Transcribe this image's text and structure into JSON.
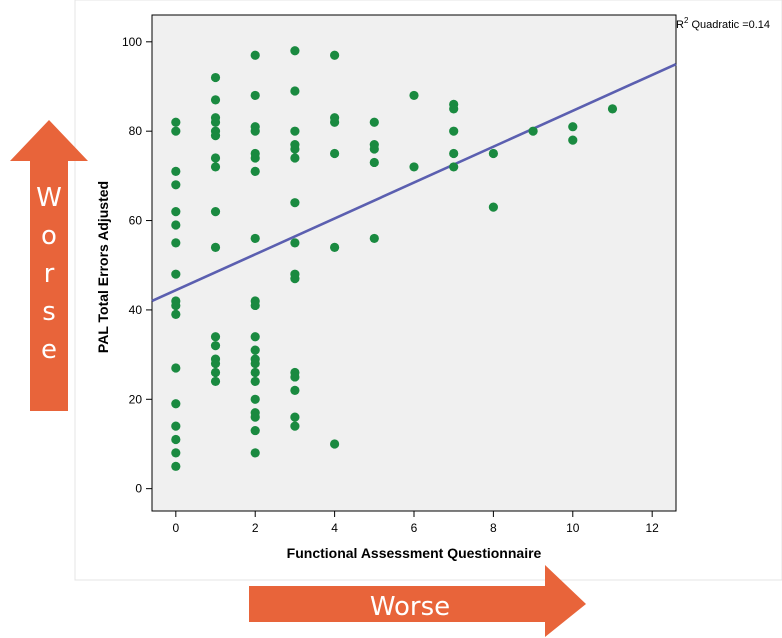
{
  "chart_data": {
    "type": "scatter",
    "xlabel": "Functional Assessment Questionnaire",
    "ylabel": "PAL Total Errors Adjusted",
    "xlim": [
      -0.6,
      12.6
    ],
    "ylim": [
      -5,
      106
    ],
    "x_ticks": [
      0,
      2,
      4,
      6,
      8,
      10,
      12
    ],
    "y_ticks": [
      0,
      20,
      40,
      60,
      80,
      100
    ],
    "grid": false,
    "fit_label": {
      "prefix": "R",
      "sup": "2",
      "suffix": " Quadratic =0.14"
    },
    "fit_line": {
      "x": [
        -0.6,
        12.6
      ],
      "y": [
        42,
        95
      ]
    },
    "points": [
      {
        "x": 0,
        "y": 82
      },
      {
        "x": 0,
        "y": 80
      },
      {
        "x": 0,
        "y": 71
      },
      {
        "x": 0,
        "y": 68
      },
      {
        "x": 0,
        "y": 62
      },
      {
        "x": 0,
        "y": 59
      },
      {
        "x": 0,
        "y": 55
      },
      {
        "x": 0,
        "y": 48
      },
      {
        "x": 0,
        "y": 42
      },
      {
        "x": 0,
        "y": 41
      },
      {
        "x": 0,
        "y": 39
      },
      {
        "x": 0,
        "y": 27
      },
      {
        "x": 0,
        "y": 19
      },
      {
        "x": 0,
        "y": 14
      },
      {
        "x": 0,
        "y": 11
      },
      {
        "x": 0,
        "y": 8
      },
      {
        "x": 0,
        "y": 5
      },
      {
        "x": 1,
        "y": 92
      },
      {
        "x": 1,
        "y": 87
      },
      {
        "x": 1,
        "y": 83
      },
      {
        "x": 1,
        "y": 82
      },
      {
        "x": 1,
        "y": 80
      },
      {
        "x": 1,
        "y": 79
      },
      {
        "x": 1,
        "y": 74
      },
      {
        "x": 1,
        "y": 72
      },
      {
        "x": 1,
        "y": 62
      },
      {
        "x": 1,
        "y": 54
      },
      {
        "x": 1,
        "y": 34
      },
      {
        "x": 1,
        "y": 32
      },
      {
        "x": 1,
        "y": 29
      },
      {
        "x": 1,
        "y": 28
      },
      {
        "x": 1,
        "y": 26
      },
      {
        "x": 1,
        "y": 24
      },
      {
        "x": 2,
        "y": 97
      },
      {
        "x": 2,
        "y": 88
      },
      {
        "x": 2,
        "y": 81
      },
      {
        "x": 2,
        "y": 80
      },
      {
        "x": 2,
        "y": 75
      },
      {
        "x": 2,
        "y": 74
      },
      {
        "x": 2,
        "y": 71
      },
      {
        "x": 2,
        "y": 56
      },
      {
        "x": 2,
        "y": 42
      },
      {
        "x": 2,
        "y": 41
      },
      {
        "x": 2,
        "y": 34
      },
      {
        "x": 2,
        "y": 31
      },
      {
        "x": 2,
        "y": 29
      },
      {
        "x": 2,
        "y": 28
      },
      {
        "x": 2,
        "y": 26
      },
      {
        "x": 2,
        "y": 24
      },
      {
        "x": 2,
        "y": 20
      },
      {
        "x": 2,
        "y": 17
      },
      {
        "x": 2,
        "y": 16
      },
      {
        "x": 2,
        "y": 13
      },
      {
        "x": 2,
        "y": 8
      },
      {
        "x": 3,
        "y": 98
      },
      {
        "x": 3,
        "y": 89
      },
      {
        "x": 3,
        "y": 80
      },
      {
        "x": 3,
        "y": 77
      },
      {
        "x": 3,
        "y": 76
      },
      {
        "x": 3,
        "y": 74
      },
      {
        "x": 3,
        "y": 64
      },
      {
        "x": 3,
        "y": 55
      },
      {
        "x": 3,
        "y": 48
      },
      {
        "x": 3,
        "y": 47
      },
      {
        "x": 3,
        "y": 26
      },
      {
        "x": 3,
        "y": 25
      },
      {
        "x": 3,
        "y": 22
      },
      {
        "x": 3,
        "y": 16
      },
      {
        "x": 3,
        "y": 14
      },
      {
        "x": 4,
        "y": 97
      },
      {
        "x": 4,
        "y": 83
      },
      {
        "x": 4,
        "y": 82
      },
      {
        "x": 4,
        "y": 75
      },
      {
        "x": 4,
        "y": 54
      },
      {
        "x": 4,
        "y": 10
      },
      {
        "x": 5,
        "y": 82
      },
      {
        "x": 5,
        "y": 77
      },
      {
        "x": 5,
        "y": 76
      },
      {
        "x": 5,
        "y": 73
      },
      {
        "x": 5,
        "y": 56
      },
      {
        "x": 6,
        "y": 88
      },
      {
        "x": 6,
        "y": 72
      },
      {
        "x": 7,
        "y": 86
      },
      {
        "x": 7,
        "y": 85
      },
      {
        "x": 7,
        "y": 80
      },
      {
        "x": 7,
        "y": 75
      },
      {
        "x": 7,
        "y": 72
      },
      {
        "x": 8,
        "y": 75
      },
      {
        "x": 8,
        "y": 63
      },
      {
        "x": 9,
        "y": 80
      },
      {
        "x": 10,
        "y": 81
      },
      {
        "x": 10,
        "y": 78
      },
      {
        "x": 11,
        "y": 85
      }
    ]
  },
  "arrows": {
    "vertical_label": "Worse",
    "horizontal_label": "Worse"
  },
  "colors": {
    "point": "#1a8a40",
    "fit_line": "#5b5fb0",
    "plot_background": "#f0f0f0",
    "arrow": "#e8643a"
  }
}
